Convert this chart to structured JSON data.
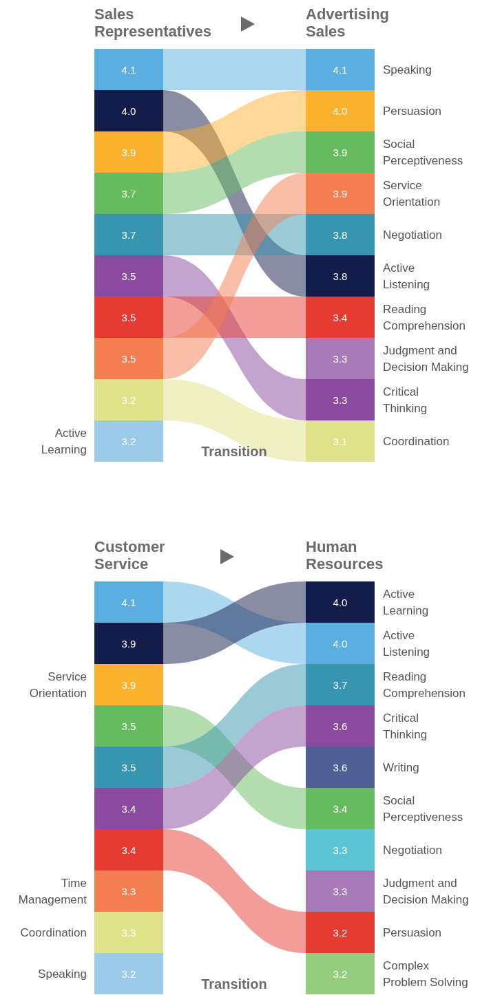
{
  "chart_data": [
    {
      "type": "other",
      "title": "Sales Representatives",
      "categories": [
        null,
        null,
        null,
        null,
        null,
        null,
        null,
        null,
        null,
        "Active Learning"
      ],
      "values": [
        4.1,
        4.0,
        3.9,
        3.7,
        3.7,
        3.5,
        3.5,
        3.5,
        3.2,
        3.2
      ],
      "value_labels": [
        "4.1",
        "4.0",
        "3.9",
        "3.7",
        "3.7",
        "3.5",
        "3.5",
        "3.5",
        "3.2",
        "3.2"
      ],
      "colors": [
        "#5aafe0",
        "#141c4a",
        "#fbb22e",
        "#66bb5f",
        "#3895b0",
        "#8a4a9e",
        "#e63b30",
        "#f47e52",
        "#dfe288",
        "#9bcbe8"
      ]
    },
    {
      "type": "other",
      "title": "Advertising Sales",
      "annotations": [
        "Transition"
      ],
      "categories": [
        "Speaking",
        "Persuasion",
        "Social Perceptiveness",
        "Service Orientation",
        "Negotiation",
        "Active Listening",
        "Reading Comprehension",
        "Judgment and Decision Making",
        "Critical Thinking",
        "Coordination"
      ],
      "values": [
        4.1,
        4.0,
        3.9,
        3.9,
        3.8,
        3.8,
        3.4,
        3.3,
        3.3,
        3.1
      ],
      "value_labels": [
        "4.1",
        "4.0",
        "3.9",
        "3.9",
        "3.8",
        "3.8",
        "3.4",
        "3.3",
        "3.3",
        "3.1"
      ],
      "colors": [
        "#5aafe0",
        "#fbb22e",
        "#66bb5f",
        "#f47e52",
        "#3895b0",
        "#141c4a",
        "#e63b30",
        "#a77ab8",
        "#8a4a9e",
        "#dfe288"
      ]
    },
    {
      "type": "other",
      "title": "Customer Service",
      "categories": [
        null,
        null,
        "Service Orientation",
        null,
        null,
        null,
        null,
        "Time Management",
        "Coordination",
        "Speaking"
      ],
      "values": [
        4.1,
        3.9,
        3.9,
        3.5,
        3.5,
        3.4,
        3.4,
        3.3,
        3.3,
        3.2
      ],
      "value_labels": [
        "4.1",
        "3.9",
        "3.9",
        "3.5",
        "3.5",
        "3.4",
        "3.4",
        "3.3",
        "3.3",
        "3.2"
      ],
      "colors": [
        "#5aafe0",
        "#141c4a",
        "#fbb22e",
        "#66bb5f",
        "#3895b0",
        "#8a4a9e",
        "#e63b30",
        "#f47e52",
        "#dfe288",
        "#9bcbe8"
      ]
    },
    {
      "type": "other",
      "title": "Human Resources",
      "annotations": [
        "Transition"
      ],
      "categories": [
        "Active Learning",
        "Active Listening",
        "Reading Comprehension",
        "Critical Thinking",
        "Writing",
        "Social Perceptiveness",
        "Negotiation",
        "Judgment and Decision Making",
        "Persuasion",
        "Complex Problem Solving"
      ],
      "values": [
        4.0,
        4.0,
        3.7,
        3.6,
        3.6,
        3.4,
        3.3,
        3.3,
        3.2,
        3.2
      ],
      "value_labels": [
        "4.0",
        "4.0",
        "3.7",
        "3.6",
        "3.6",
        "3.4",
        "3.3",
        "3.3",
        "3.2",
        "3.2"
      ],
      "colors": [
        "#141c4a",
        "#5aafe0",
        "#3895b0",
        "#8a4a9e",
        "#4f5f95",
        "#66bb5f",
        "#5bc5d5",
        "#a77ab8",
        "#e63b30",
        "#95cc7e"
      ]
    }
  ]
}
